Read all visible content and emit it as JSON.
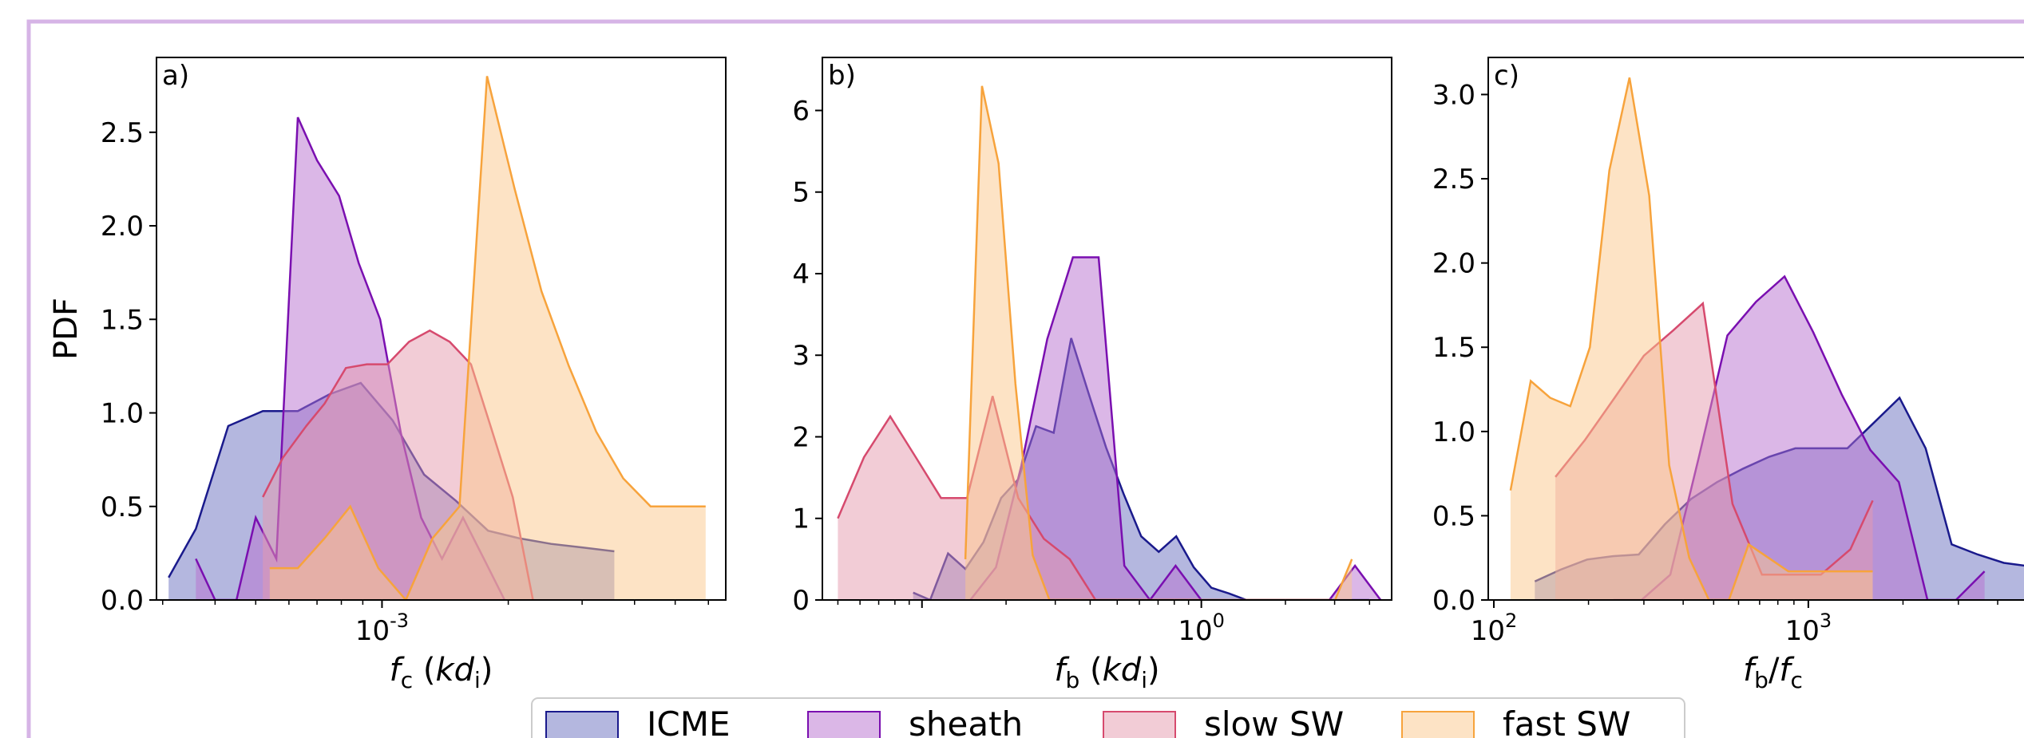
{
  "chart_data": [
    {
      "type": "area",
      "panel_label": "a)",
      "ylabel": "PDF",
      "xlabel": "f_c (kd_i)",
      "xscale": "log",
      "x_tick_labels": [
        {
          "value": 0.001,
          "label": "10^-3"
        }
      ],
      "xlim": [
        0.00029,
        0.0066
      ],
      "ylim": [
        0,
        2.9
      ],
      "y_ticks": [
        0.0,
        0.5,
        1.0,
        1.5,
        2.0,
        2.5
      ],
      "series": [
        {
          "name": "ICME",
          "x": [
            0.00031,
            0.00036,
            0.00043,
            0.00052,
            0.00063,
            0.00075,
            0.00089,
            0.00106,
            0.00126,
            0.0015,
            0.00179,
            0.00212,
            0.00253,
            0.00301,
            0.00358
          ],
          "y": [
            0.12,
            0.38,
            0.93,
            1.01,
            1.01,
            1.1,
            1.16,
            0.96,
            0.67,
            0.53,
            0.37,
            0.33,
            0.3,
            0.28,
            0.26
          ]
        },
        {
          "name": "sheath",
          "x": [
            0.00036,
            0.0004,
            0.00045,
            0.0005,
            0.00056,
            0.00063,
            0.0007,
            0.00079,
            0.00088,
            0.00099,
            0.00111,
            0.00124,
            0.00139,
            0.00156,
            0.00175,
            0.00196
          ],
          "y": [
            0.22,
            0.0,
            0.0,
            0.44,
            0.22,
            2.58,
            2.35,
            2.16,
            1.8,
            1.5,
            0.89,
            0.44,
            0.22,
            0.44,
            0.22,
            0.0
          ]
        },
        {
          "name": "slow SW",
          "x": [
            0.00052,
            0.00058,
            0.00066,
            0.00073,
            0.00082,
            0.00092,
            0.00103,
            0.00116,
            0.0013,
            0.00145,
            0.00163,
            0.00182,
            0.00205,
            0.00229
          ],
          "y": [
            0.55,
            0.76,
            0.93,
            1.05,
            1.24,
            1.26,
            1.26,
            1.38,
            1.44,
            1.38,
            1.26,
            0.92,
            0.55,
            0.0
          ]
        },
        {
          "name": "fast SW",
          "x": [
            0.00054,
            0.00063,
            0.00073,
            0.00084,
            0.00098,
            0.00114,
            0.00132,
            0.00153,
            0.00178,
            0.00207,
            0.0024,
            0.00279,
            0.00324,
            0.00376,
            0.00437,
            0.00508,
            0.00591
          ],
          "y": [
            0.17,
            0.17,
            0.33,
            0.5,
            0.17,
            0.0,
            0.33,
            0.5,
            2.8,
            2.2,
            1.65,
            1.25,
            0.9,
            0.65,
            0.5,
            0.5,
            0.5
          ]
        }
      ]
    },
    {
      "type": "area",
      "panel_label": "b)",
      "xlabel": "f_b (kd_i)",
      "xscale": "log",
      "x_tick_labels": [
        {
          "value": 1,
          "label": "10^0"
        }
      ],
      "xlim": [
        0.044,
        4.8
      ],
      "ylim": [
        0,
        6.65
      ],
      "y_ticks": [
        0,
        1,
        2,
        3,
        4,
        5,
        6
      ],
      "series": [
        {
          "name": "ICME",
          "x": [
            0.093,
            0.107,
            0.124,
            0.143,
            0.166,
            0.192,
            0.221,
            0.256,
            0.296,
            0.342,
            0.395,
            0.456,
            0.527,
            0.609,
            0.704,
            0.813,
            0.94,
            1.086,
            1.255,
            1.45,
            1.676,
            1.936,
            2.238,
            2.586,
            2.988,
            3.452,
            3.99
          ],
          "y": [
            0.09,
            0.0,
            0.57,
            0.38,
            0.71,
            1.25,
            1.48,
            2.13,
            2.05,
            3.21,
            2.53,
            1.87,
            1.3,
            0.78,
            0.59,
            0.78,
            0.4,
            0.15,
            0.08,
            0.0,
            0.0,
            0.0,
            0.0,
            0.0,
            0.0,
            0.0,
            0.0
          ]
        },
        {
          "name": "sheath",
          "x": [
            0.149,
            0.184,
            0.227,
            0.281,
            0.347,
            0.429,
            0.53,
            0.655,
            0.809,
            0.999,
            1.234,
            1.524,
            1.883,
            2.326,
            2.873,
            3.549,
            4.384
          ],
          "y": [
            0.0,
            0.4,
            1.65,
            3.2,
            4.2,
            4.2,
            0.42,
            0.0,
            0.42,
            0.0,
            0.0,
            0.0,
            0.0,
            0.0,
            0.0,
            0.42,
            0.0
          ]
        },
        {
          "name": "slow SW",
          "x": [
            0.05,
            0.062,
            0.077,
            0.095,
            0.117,
            0.145,
            0.179,
            0.221,
            0.273,
            0.338,
            0.418,
            0.517,
            0.638,
            0.789,
            0.975
          ],
          "y": [
            1.0,
            1.75,
            2.25,
            1.75,
            1.25,
            1.25,
            2.5,
            1.25,
            0.75,
            0.5,
            0.0,
            0.0,
            0.0,
            0.0,
            0.0
          ]
        },
        {
          "name": "fast SW",
          "x": [
            0.143,
            0.164,
            0.188,
            0.216,
            0.249,
            0.286,
            0.328,
            0.377,
            0.433,
            0.497,
            0.571,
            0.656,
            0.754,
            0.866,
            0.995,
            1.143,
            1.313,
            1.508,
            1.732,
            1.989,
            2.284,
            2.623,
            3.012,
            3.459
          ],
          "y": [
            0.5,
            6.3,
            5.35,
            2.65,
            0.55,
            0.0,
            0.0,
            0.0,
            0.0,
            0.0,
            0.0,
            0.0,
            0.0,
            0.0,
            0.0,
            0.0,
            0.0,
            0.0,
            0.0,
            0.0,
            0.0,
            0.0,
            0.0,
            0.5
          ]
        }
      ]
    },
    {
      "type": "area",
      "panel_label": "c)",
      "xlabel": "f_b/f_c",
      "xscale": "log",
      "x_tick_labels": [
        {
          "value": 100,
          "label": "10^2"
        },
        {
          "value": 1000,
          "label": "10^3"
        }
      ],
      "xlim": [
        96,
        6200
      ],
      "ylim": [
        0,
        3.22
      ],
      "y_ticks": [
        0.0,
        0.5,
        1.0,
        1.5,
        2.0,
        2.5,
        3.0
      ],
      "series": [
        {
          "name": "ICME",
          "x": [
            135,
            163,
            198,
            239,
            289,
            350,
            424,
            513,
            621,
            751,
            909,
            1100,
            1331,
            1611,
            1950,
            2360,
            2856,
            3456,
            4183,
            5063
          ],
          "y": [
            0.11,
            0.18,
            0.24,
            0.26,
            0.27,
            0.45,
            0.6,
            0.7,
            0.78,
            0.85,
            0.9,
            0.9,
            0.9,
            1.05,
            1.2,
            0.9,
            0.33,
            0.27,
            0.22,
            0.2
          ]
        },
        {
          "name": "sheath",
          "x": [
            240,
            295,
            364,
            449,
            553,
            682,
            840,
            1036,
            1277,
            1574,
            1940,
            2392,
            2948,
            3634
          ],
          "y": [
            0.0,
            0.0,
            0.15,
            0.85,
            1.57,
            1.77,
            1.92,
            1.59,
            1.22,
            0.89,
            0.7,
            0.0,
            0.0,
            0.17
          ]
        },
        {
          "name": "slow SW",
          "x": [
            157,
            195,
            242,
            300,
            372,
            462,
            574,
            712,
            883,
            1096,
            1360,
            1602
          ],
          "y": [
            0.73,
            0.95,
            1.2,
            1.45,
            1.6,
            1.76,
            0.57,
            0.15,
            0.15,
            0.15,
            0.3,
            0.59
          ]
        },
        {
          "name": "fast SW",
          "x": [
            113,
            131,
            151,
            175,
            202,
            233,
            270,
            312,
            361,
            418,
            483,
            559,
            646,
            747,
            864,
            1000,
            1157,
            1338,
            1548,
            1602
          ],
          "y": [
            0.65,
            1.3,
            1.2,
            1.15,
            1.5,
            2.55,
            3.1,
            2.4,
            0.8,
            0.25,
            0.0,
            0.0,
            0.33,
            0.25,
            0.17,
            0.17,
            0.17,
            0.17,
            0.17,
            0.17
          ]
        }
      ]
    }
  ],
  "legend": {
    "entries": [
      {
        "label": "ICME",
        "fill": "#6a6fbf",
        "stroke": "#1a1a8c"
      },
      {
        "label": "sheath",
        "fill": "#b86fd0",
        "stroke": "#7a0fb0"
      },
      {
        "label": "slow SW",
        "fill": "#e69aad",
        "stroke": "#d64a6e"
      },
      {
        "label": "fast SW",
        "fill": "#fbc88c",
        "stroke": "#f7a33c"
      }
    ],
    "placement": "bottom-center"
  },
  "colors": {
    "ICME": "#1a1a8c",
    "sheath": "#7a0fb0",
    "slow SW": "#d64a6e",
    "fast SW": "#f7a33c",
    "frame_border": "#d6b4e6"
  },
  "fill_opacity": 0.5
}
